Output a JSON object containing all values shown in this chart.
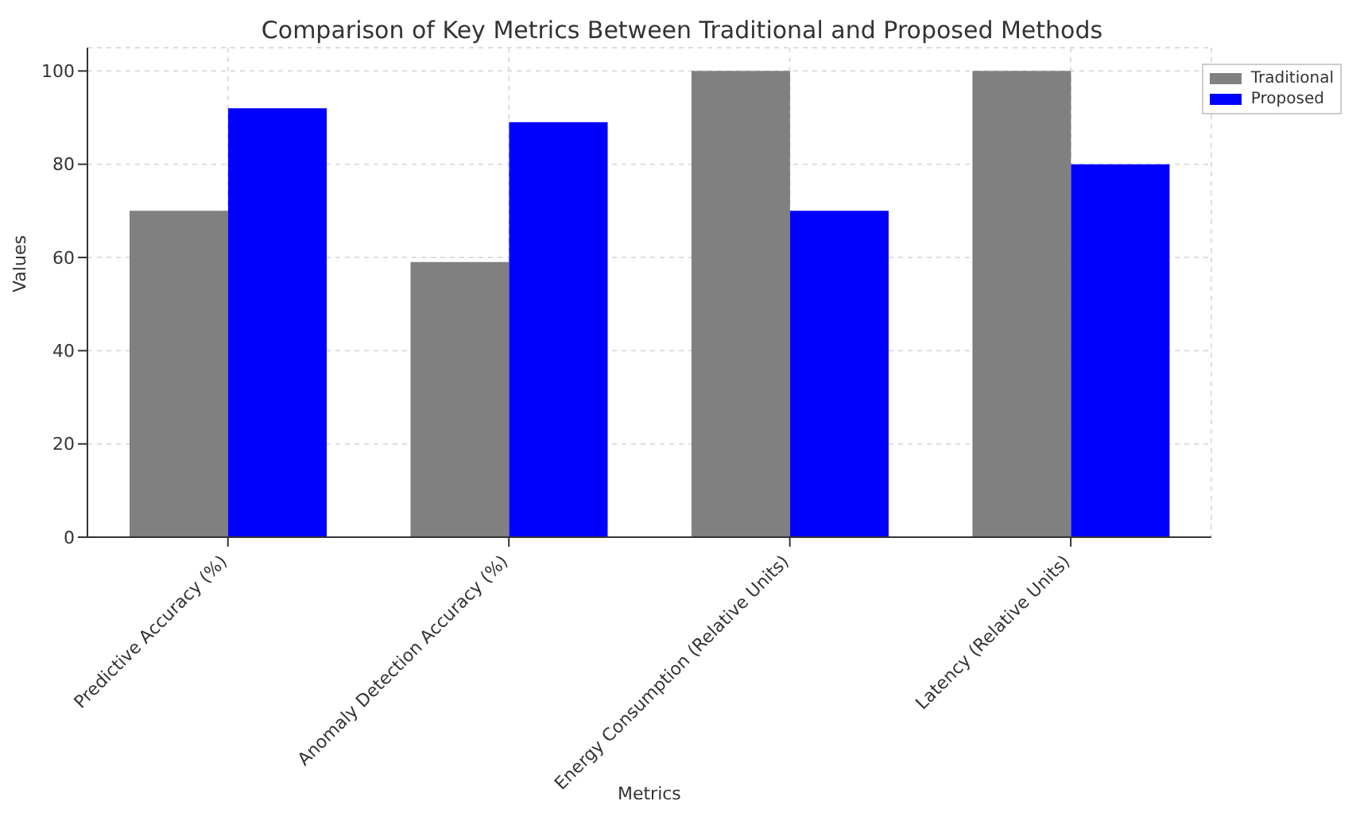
{
  "chart_data": {
    "type": "bar",
    "title": "Comparison of Key Metrics Between Traditional and Proposed Methods",
    "xlabel": "Metrics",
    "ylabel": "Values",
    "categories": [
      "Predictive Accuracy (%)",
      "Anomaly Detection Accuracy (%)",
      "Energy Consumption (Relative Units)",
      "Latency (Relative Units)"
    ],
    "series": [
      {
        "name": "Traditional",
        "color": "#808080",
        "values": [
          70,
          59,
          100,
          100
        ]
      },
      {
        "name": "Proposed",
        "color": "#0000ff",
        "values": [
          92,
          89,
          70,
          80
        ]
      }
    ],
    "ylim": [
      0,
      105
    ],
    "yticks": [
      0,
      20,
      40,
      60,
      80,
      100
    ],
    "grid": true,
    "legend": "top right"
  }
}
